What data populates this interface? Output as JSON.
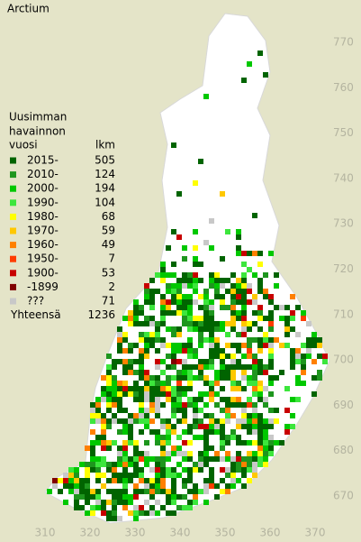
{
  "title": "Arctium",
  "legend": {
    "heading": [
      "Uusimman",
      "havainnon"
    ],
    "year_header": "vuosi",
    "count_header": "lkm",
    "items": [
      {
        "label": "2015-",
        "count": 505,
        "color": "#006400"
      },
      {
        "label": "2010-",
        "count": 124,
        "color": "#1e961e"
      },
      {
        "label": "2000-",
        "count": 194,
        "color": "#00c800"
      },
      {
        "label": "1990-",
        "count": 104,
        "color": "#3ce63c"
      },
      {
        "label": "1980-",
        "count": 68,
        "color": "#ffff00"
      },
      {
        "label": "1970-",
        "count": 59,
        "color": "#ffc800"
      },
      {
        "label": "1960-",
        "count": 49,
        "color": "#ff8000"
      },
      {
        "label": "1950-",
        "count": 7,
        "color": "#ff3c00"
      },
      {
        "label": "1900-",
        "count": 53,
        "color": "#c80000"
      },
      {
        "label": "-1899",
        "count": 2,
        "color": "#800000"
      },
      {
        "label": "???",
        "count": 71,
        "color": "#c8c8c8"
      }
    ],
    "total_label": "Yhteensä",
    "total": 1236
  },
  "axes": {
    "right": [
      770,
      760,
      750,
      740,
      730,
      720,
      710,
      700,
      690,
      680,
      670
    ],
    "bottom": [
      310,
      320,
      330,
      340,
      350,
      360,
      370
    ]
  }
}
